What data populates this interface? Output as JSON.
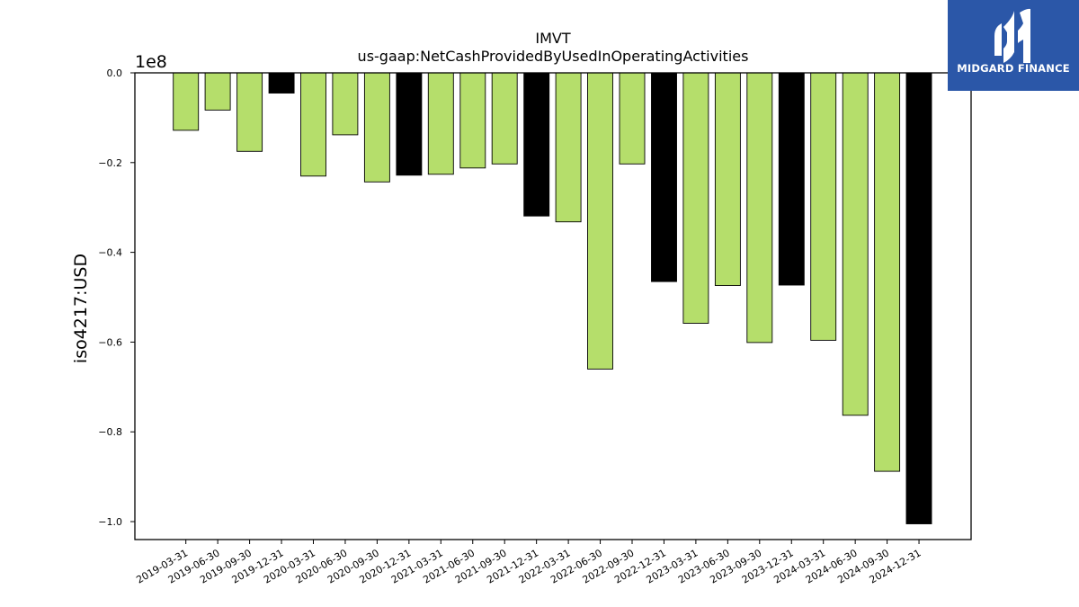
{
  "chart_data": {
    "type": "bar",
    "title": "IMVT",
    "subtitle": "us-gaap:NetCashProvidedByUsedInOperatingActivities",
    "ylabel": "iso4217:USD",
    "xlabel": "",
    "scale_label": "1e8",
    "ylim": [
      -1.04,
      0.0
    ],
    "yticks": [
      0.0,
      -0.2,
      -0.4,
      -0.6,
      -0.8,
      -1.0
    ],
    "ytick_labels": [
      "0.0",
      "−0.2",
      "−0.4",
      "−0.6",
      "−0.8",
      "−1.0"
    ],
    "categories": [
      "2019-03-31",
      "2019-06-30",
      "2019-09-30",
      "2019-12-31",
      "2020-03-31",
      "2020-06-30",
      "2020-09-30",
      "2020-12-31",
      "2021-03-31",
      "2021-06-30",
      "2021-09-30",
      "2021-12-31",
      "2022-03-31",
      "2022-06-30",
      "2022-09-30",
      "2022-12-31",
      "2023-03-31",
      "2023-06-30",
      "2023-09-30",
      "2023-12-31",
      "2024-03-31",
      "2024-06-30",
      "2024-09-30",
      "2024-12-31"
    ],
    "values": [
      -0.128,
      -0.083,
      -0.175,
      -0.045,
      -0.23,
      -0.138,
      -0.243,
      -0.228,
      -0.226,
      -0.212,
      -0.203,
      -0.319,
      -0.332,
      -0.66,
      -0.203,
      -0.465,
      -0.558,
      -0.474,
      -0.601,
      -0.473,
      -0.596,
      -0.763,
      -0.888,
      -1.005
    ],
    "bar_colors": {
      "quarter": "#b5de6b",
      "year_end": "#000000"
    },
    "grid": false
  },
  "logo": {
    "text": "MIDGARD FINANCE",
    "background": "#2b57a8",
    "icon": "midgard-logo-icon"
  }
}
